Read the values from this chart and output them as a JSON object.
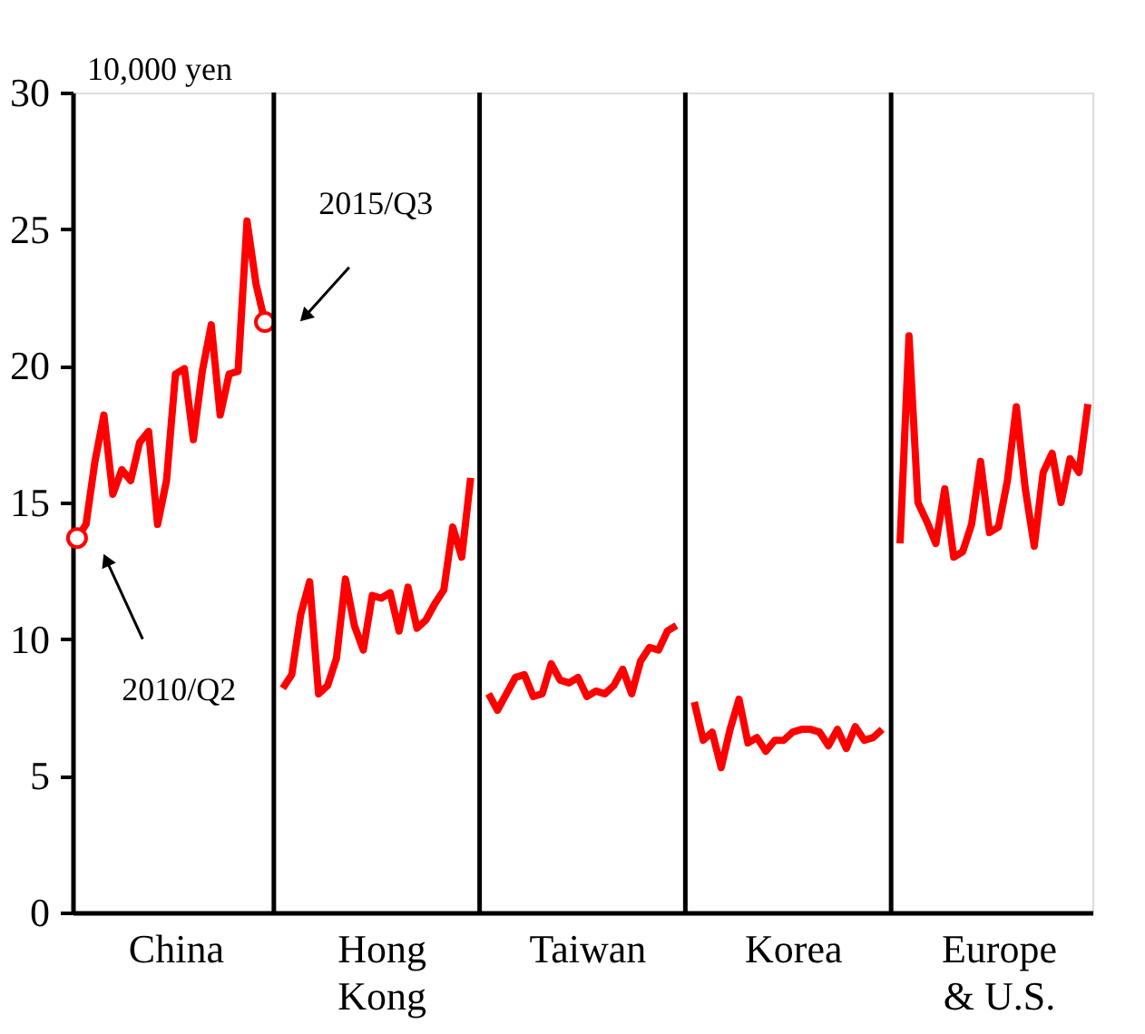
{
  "chart_data": {
    "type": "line",
    "ylabel": "10,000 yen",
    "categories": [
      null,
      null,
      null,
      null,
      null,
      null,
      null,
      null,
      null,
      null,
      null,
      "China",
      null,
      null,
      null,
      null,
      null,
      null,
      null,
      null,
      null,
      null,
      null,
      null,
      null,
      null,
      null,
      null,
      null,
      null,
      null,
      null,
      null,
      null,
      "Hong Kong",
      null,
      null,
      null,
      null,
      null,
      null,
      null,
      null,
      null,
      null,
      null,
      null,
      null,
      null,
      null,
      null,
      null,
      null,
      null,
      null,
      null,
      null,
      "Taiwan",
      null,
      null,
      null,
      null,
      null,
      null,
      null,
      null,
      null,
      null,
      null,
      null,
      null,
      null,
      null,
      null,
      null,
      null,
      null,
      null,
      null,
      null,
      "Korea",
      null,
      null,
      null,
      null,
      null,
      null,
      null,
      null,
      null,
      null,
      null,
      null,
      null,
      null,
      null,
      null,
      null,
      null,
      null,
      null,
      null,
      null,
      "Europe & U.S.",
      null,
      null,
      null,
      null,
      null,
      null,
      null,
      null,
      null,
      null
    ],
    "ylim": [
      0,
      30
    ],
    "yticks": [
      0,
      5,
      10,
      15,
      20,
      25,
      30
    ],
    "grid": false,
    "legend": false,
    "marker": "none",
    "line_style": "solid",
    "series": [
      {
        "color": "#ff0000",
        "values": [
          13.7,
          14.2,
          16.5,
          18.2,
          15.3,
          16.2,
          15.8,
          17.2,
          17.6,
          14.2,
          15.8,
          19.7,
          19.9,
          17.3,
          19.8,
          21.5,
          18.2,
          19.7,
          19.8,
          25.3,
          23.0,
          21.6,
          null,
          null,
          null,
          null,
          null,
          null,
          null,
          null,
          null,
          null,
          null,
          null,
          null,
          null,
          null,
          null,
          null,
          null,
          null,
          null,
          null,
          null,
          null,
          null,
          null,
          null,
          null,
          null,
          null,
          null,
          null,
          null,
          null,
          null,
          null,
          null,
          null,
          null,
          null,
          null,
          null,
          null,
          null,
          null,
          null,
          null,
          null,
          null,
          null,
          null,
          null,
          null,
          null,
          null,
          null,
          null,
          null,
          null,
          null,
          null,
          null,
          null,
          null,
          null,
          null,
          null,
          null,
          null,
          null,
          null,
          null,
          null,
          null,
          null,
          null,
          null,
          null,
          null,
          null,
          null,
          null,
          null,
          null,
          null,
          null,
          null,
          null,
          null,
          null,
          null,
          null,
          null
        ]
      },
      {
        "color": "#ff0000",
        "values": [
          null,
          null,
          null,
          null,
          null,
          null,
          null,
          null,
          null,
          null,
          null,
          null,
          null,
          null,
          null,
          null,
          null,
          null,
          null,
          null,
          null,
          null,
          null,
          8.2,
          8.7,
          10.9,
          12.1,
          8.0,
          8.3,
          9.3,
          12.2,
          10.5,
          9.6,
          11.6,
          11.5,
          11.7,
          10.3,
          11.9,
          10.4,
          10.7,
          11.3,
          11.8,
          14.1,
          13.0,
          15.9,
          null,
          null,
          null,
          null,
          null,
          null,
          null,
          null,
          null,
          null,
          null,
          null,
          null,
          null,
          null,
          null,
          null,
          null,
          null,
          null,
          null,
          null,
          null,
          null,
          null,
          null,
          null,
          null,
          null,
          null,
          null,
          null,
          null,
          null,
          null,
          null,
          null,
          null,
          null,
          null,
          null,
          null,
          null,
          null,
          null,
          null,
          null,
          null,
          null,
          null,
          null,
          null,
          null,
          null,
          null,
          null,
          null,
          null,
          null,
          null,
          null,
          null,
          null,
          null,
          null,
          null,
          null,
          null,
          null
        ]
      },
      {
        "color": "#ff0000",
        "values": [
          null,
          null,
          null,
          null,
          null,
          null,
          null,
          null,
          null,
          null,
          null,
          null,
          null,
          null,
          null,
          null,
          null,
          null,
          null,
          null,
          null,
          null,
          null,
          null,
          null,
          null,
          null,
          null,
          null,
          null,
          null,
          null,
          null,
          null,
          null,
          null,
          null,
          null,
          null,
          null,
          null,
          null,
          null,
          null,
          null,
          null,
          8.0,
          7.4,
          8.0,
          8.6,
          8.7,
          7.9,
          8.0,
          9.1,
          8.5,
          8.4,
          8.6,
          7.9,
          8.1,
          8.0,
          8.3,
          8.9,
          8.0,
          9.2,
          9.7,
          9.6,
          10.3,
          10.5,
          null,
          null,
          null,
          null,
          null,
          null,
          null,
          null,
          null,
          null,
          null,
          null,
          null,
          null,
          null,
          null,
          null,
          null,
          null,
          null,
          null,
          null,
          null,
          null,
          null,
          null,
          null,
          null,
          null,
          null,
          null,
          null,
          null,
          null,
          null,
          null,
          null,
          null,
          null,
          null,
          null,
          null,
          null,
          null,
          null,
          null
        ]
      },
      {
        "color": "#ff0000",
        "values": [
          null,
          null,
          null,
          null,
          null,
          null,
          null,
          null,
          null,
          null,
          null,
          null,
          null,
          null,
          null,
          null,
          null,
          null,
          null,
          null,
          null,
          null,
          null,
          null,
          null,
          null,
          null,
          null,
          null,
          null,
          null,
          null,
          null,
          null,
          null,
          null,
          null,
          null,
          null,
          null,
          null,
          null,
          null,
          null,
          null,
          null,
          null,
          null,
          null,
          null,
          null,
          null,
          null,
          null,
          null,
          null,
          null,
          null,
          null,
          null,
          null,
          null,
          null,
          null,
          null,
          null,
          null,
          null,
          null,
          7.7,
          6.3,
          6.6,
          5.3,
          6.7,
          7.8,
          6.2,
          6.4,
          5.9,
          6.3,
          6.3,
          6.6,
          6.7,
          6.7,
          6.6,
          6.1,
          6.7,
          6.0,
          6.8,
          6.3,
          6.4,
          6.7,
          null,
          null,
          null,
          null,
          null,
          null,
          null,
          null,
          null,
          null,
          null,
          null,
          null,
          null,
          null,
          null,
          null,
          null,
          null,
          null,
          null,
          null,
          null
        ]
      },
      {
        "color": "#ff0000",
        "values": [
          null,
          null,
          null,
          null,
          null,
          null,
          null,
          null,
          null,
          null,
          null,
          null,
          null,
          null,
          null,
          null,
          null,
          null,
          null,
          null,
          null,
          null,
          null,
          null,
          null,
          null,
          null,
          null,
          null,
          null,
          null,
          null,
          null,
          null,
          null,
          null,
          null,
          null,
          null,
          null,
          null,
          null,
          null,
          null,
          null,
          null,
          null,
          null,
          null,
          null,
          null,
          null,
          null,
          null,
          null,
          null,
          null,
          null,
          null,
          null,
          null,
          null,
          null,
          null,
          null,
          null,
          null,
          null,
          null,
          null,
          null,
          null,
          null,
          null,
          null,
          null,
          null,
          null,
          null,
          null,
          null,
          null,
          null,
          null,
          null,
          null,
          null,
          null,
          null,
          null,
          null,
          null,
          13.5,
          21.1,
          15.0,
          14.3,
          13.5,
          15.5,
          13.0,
          13.2,
          14.2,
          16.5,
          13.9,
          14.1,
          15.8,
          18.5,
          15.5,
          13.4,
          16.1,
          16.8,
          15.0,
          16.6,
          16.1,
          18.6
        ]
      },
      {
        "type": "scatter",
        "marker": "circle",
        "color": "#ff0000",
        "values": [
          13.7,
          null,
          null,
          null,
          null,
          null,
          null,
          null,
          null,
          null,
          null,
          null,
          null,
          null,
          null,
          null,
          null,
          null,
          null,
          null,
          null,
          21.6,
          null,
          null,
          null,
          null,
          null,
          null,
          null,
          null,
          null,
          null,
          null,
          null,
          null,
          null,
          null,
          null,
          null,
          null,
          null,
          null,
          null,
          null,
          null,
          null,
          null,
          null,
          null,
          null,
          null,
          null,
          null,
          null,
          null,
          null,
          null,
          null,
          null,
          null,
          null,
          null,
          null,
          null,
          null,
          null,
          null,
          null,
          null,
          null,
          null,
          null,
          null,
          null,
          null,
          null,
          null,
          null,
          null,
          null,
          null,
          null,
          null,
          null,
          null,
          null,
          null,
          null,
          null,
          null,
          null,
          null,
          null,
          null,
          null,
          null,
          null,
          null,
          null,
          null,
          null,
          null,
          null,
          null,
          null,
          null,
          null,
          null,
          null,
          null,
          null,
          null,
          null,
          null
        ]
      }
    ],
    "annotations": [
      "2010/Q2",
      "2015/Q3"
    ]
  }
}
